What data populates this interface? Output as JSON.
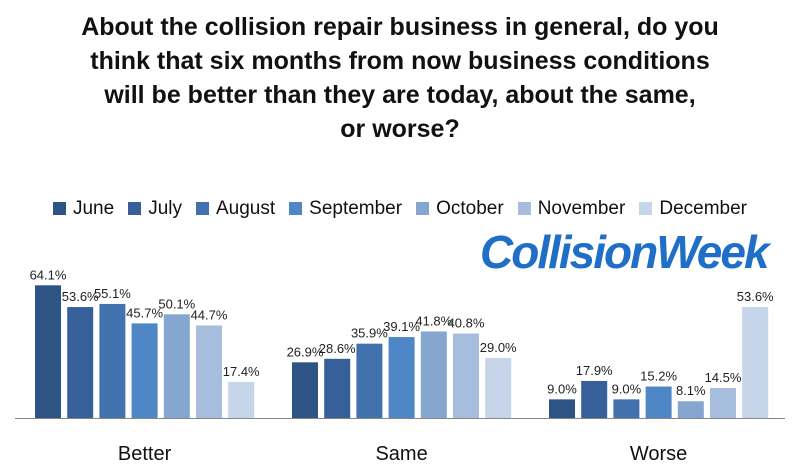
{
  "title_lines": [
    "About the collision repair business in general, do you",
    "think that six months from now business conditions",
    "will be better than they are today, about the same,",
    "or worse?"
  ],
  "logo_text": "CollisionWeek",
  "colors": {
    "June": "#2e5385",
    "July": "#37609a",
    "August": "#4272ad",
    "September": "#4e86c6",
    "October": "#84a6cf",
    "November": "#a7bddd",
    "December": "#c6d5ea",
    "baseline": "#888888",
    "logo": "#1f6fc7"
  },
  "chart_data": {
    "type": "bar",
    "title": "About the collision repair business in general, do you think that six months from now business conditions will be better than they are today, about the same, or worse?",
    "categories": [
      "Better",
      "Same",
      "Worse"
    ],
    "legend_position": "top",
    "grid": false,
    "ylim": [
      0,
      70
    ],
    "series": [
      {
        "name": "June",
        "values": [
          64.1,
          26.9,
          9.0
        ],
        "labels": [
          "64.1%",
          "26.9%",
          "9.0%"
        ]
      },
      {
        "name": "July",
        "values": [
          53.6,
          28.6,
          17.9
        ],
        "labels": [
          "53.6%",
          "28.6%",
          "17.9%"
        ]
      },
      {
        "name": "August",
        "values": [
          55.1,
          35.9,
          9.0
        ],
        "labels": [
          "55.1%",
          "35.9%",
          "9.0%"
        ]
      },
      {
        "name": "September",
        "values": [
          45.7,
          39.1,
          15.2
        ],
        "labels": [
          "45.7%",
          "39.1%",
          "15.2%"
        ]
      },
      {
        "name": "October",
        "values": [
          50.1,
          41.8,
          8.1
        ],
        "labels": [
          "50.1%",
          "41.8%",
          "8.1%"
        ]
      },
      {
        "name": "November",
        "values": [
          44.7,
          40.8,
          14.5
        ],
        "labels": [
          "44.7%",
          "40.8%",
          "14.5%"
        ]
      },
      {
        "name": "December",
        "values": [
          17.4,
          29.0,
          53.6
        ],
        "labels": [
          "17.4%",
          "29.0%",
          "53.6%"
        ]
      }
    ]
  }
}
